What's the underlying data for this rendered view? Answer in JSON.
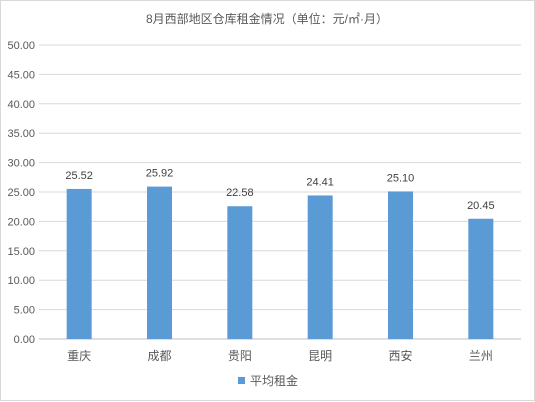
{
  "chart_data": {
    "type": "bar",
    "title": "8月西部地区仓库租金情况（单位：元/㎡·月）",
    "categories": [
      "重庆",
      "成都",
      "贵阳",
      "昆明",
      "西安",
      "兰州"
    ],
    "series": [
      {
        "name": "平均租金",
        "values": [
          25.52,
          25.92,
          22.58,
          24.41,
          25.1,
          20.45
        ]
      }
    ],
    "data_labels": [
      "25.52",
      "25.92",
      "22.58",
      "24.41",
      "25.10",
      "20.45"
    ],
    "y_ticks": [
      "0.00",
      "5.00",
      "10.00",
      "15.00",
      "20.00",
      "25.00",
      "30.00",
      "35.00",
      "40.00",
      "45.00",
      "50.00"
    ],
    "ylim": [
      0,
      50
    ],
    "grid": true,
    "legend_position": "bottom",
    "colors": {
      "bar": "#5B9BD5",
      "grid": "#d9d9d9",
      "axis": "#bfbfbf"
    }
  }
}
